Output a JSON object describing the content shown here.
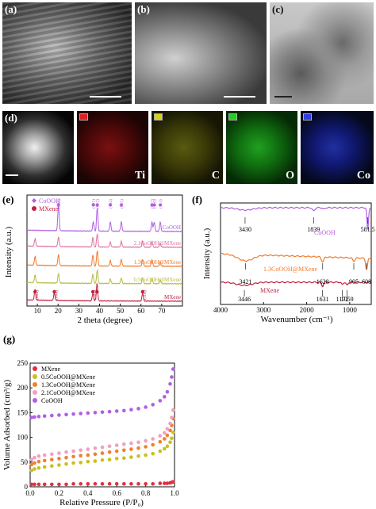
{
  "panels": {
    "a": {
      "label": "(a)"
    },
    "b": {
      "label": "(b)"
    },
    "c": {
      "label": "(c)"
    },
    "d": {
      "label": "(d)"
    },
    "e": {
      "label": "(e)"
    },
    "f": {
      "label": "(f)"
    },
    "g": {
      "label": "(g)"
    }
  },
  "eds_maps": [
    {
      "element": "Ti",
      "color": "#e02020"
    },
    {
      "element": "C",
      "color": "#d8d020"
    },
    {
      "element": "O",
      "color": "#20d020"
    },
    {
      "element": "Co",
      "color": "#3040e0"
    }
  ],
  "chart_data": [
    {
      "panel": "e",
      "type": "line",
      "xlabel": "2 theta (degree)",
      "ylabel": "Intensity (a.u.)",
      "xlim": [
        5,
        80
      ],
      "xticks": [
        10,
        20,
        30,
        40,
        50,
        60,
        70
      ],
      "legend": [
        {
          "name": "CoOOH",
          "marker": "diamond",
          "color": "#b060e0"
        },
        {
          "name": "MXene",
          "marker": "circle",
          "color": "#c02040"
        }
      ],
      "series": [
        {
          "name": "CoOOH",
          "color": "#b060e0"
        },
        {
          "name": "2.1CoOOH@MXene",
          "color": "#e070a0"
        },
        {
          "name": "1.3CoOOH@MXene",
          "color": "#f07a2a"
        },
        {
          "name": "0.5CoOOH@MXene",
          "color": "#b8b840"
        },
        {
          "name": "MXene",
          "color": "#c02040"
        }
      ],
      "cooh_peaks": [
        {
          "x": 20.2,
          "label": "(003)"
        },
        {
          "x": 37.0,
          "label": "(101)"
        },
        {
          "x": 38.9,
          "label": "(012)"
        },
        {
          "x": 45.2,
          "label": "(104)"
        },
        {
          "x": 50.5,
          "label": "(015)"
        },
        {
          "x": 65.3,
          "label": "(017)"
        },
        {
          "x": 66.4,
          "label": "(110)"
        },
        {
          "x": 69.3,
          "label": "(113)"
        }
      ],
      "mxene_peaks": [
        {
          "x": 8.9,
          "label": "(002)"
        },
        {
          "x": 18.2,
          "label": "(004)"
        },
        {
          "x": 36.8,
          "label": "(101)"
        },
        {
          "x": 38.8,
          "label": ""
        },
        {
          "x": 60.8,
          "label": "(110)"
        }
      ]
    },
    {
      "panel": "f",
      "type": "line",
      "xlabel": "Wavenumber (cm⁻¹)",
      "ylabel": "Intensity (a.u.)",
      "xlim": [
        4000,
        500
      ],
      "xticks": [
        4000,
        3000,
        2000,
        1000
      ],
      "series": [
        {
          "name": "CoOOH",
          "color": "#b060e0"
        },
        {
          "name": "1.3CoOOH@MXene",
          "color": "#f07a2a"
        },
        {
          "name": "MXene",
          "color": "#c02040"
        }
      ],
      "annotations": [
        {
          "text": "3430",
          "x": 3430,
          "series": "CoOOH"
        },
        {
          "text": "1839",
          "x": 1839,
          "series": "CoOOH"
        },
        {
          "text": "581.5",
          "x": 581.5,
          "series": "CoOOH"
        },
        {
          "text": "3421",
          "x": 3421,
          "series": "1.3CoOOH@MXene"
        },
        {
          "text": "1628",
          "x": 1628,
          "series": "1.3CoOOH@MXene"
        },
        {
          "text": "905",
          "x": 905,
          "series": "1.3CoOOH@MXene"
        },
        {
          "text": "608",
          "x": 608,
          "series": "1.3CoOOH@MXene"
        },
        {
          "text": "3446",
          "x": 3446,
          "series": "MXene"
        },
        {
          "text": "1631",
          "x": 1631,
          "series": "MXene"
        },
        {
          "text": "1172",
          "x": 1172,
          "series": "MXene"
        },
        {
          "text": "1059",
          "x": 1059,
          "series": "MXene"
        }
      ]
    },
    {
      "panel": "g",
      "type": "scatter",
      "xlabel": "Relative Pressure (P/P₀)",
      "ylabel": "Volume Adsorbed (cm³/g)",
      "xlim": [
        0.0,
        1.0
      ],
      "ylim": [
        0,
        250
      ],
      "xticks": [
        0.0,
        0.2,
        0.4,
        0.6,
        0.8,
        1.0
      ],
      "yticks": [
        0,
        50,
        100,
        150,
        200,
        250
      ],
      "legend_position": "top-left",
      "series": [
        {
          "name": "MXene",
          "color": "#e03040",
          "x": [
            0.01,
            0.03,
            0.06,
            0.1,
            0.15,
            0.2,
            0.25,
            0.3,
            0.35,
            0.4,
            0.45,
            0.5,
            0.55,
            0.6,
            0.65,
            0.7,
            0.75,
            0.8,
            0.85,
            0.9,
            0.93,
            0.95,
            0.97,
            0.98,
            0.99
          ],
          "y": [
            5,
            5,
            5,
            5,
            5,
            5,
            5,
            6,
            6,
            6,
            6,
            6,
            6,
            6,
            6,
            6,
            6,
            6,
            6,
            7,
            7,
            7,
            8,
            9,
            10
          ]
        },
        {
          "name": "0.5CoOOH@MXene",
          "color": "#c8c020",
          "x": [
            0.01,
            0.03,
            0.06,
            0.1,
            0.15,
            0.2,
            0.25,
            0.3,
            0.35,
            0.4,
            0.45,
            0.5,
            0.55,
            0.6,
            0.65,
            0.7,
            0.75,
            0.8,
            0.85,
            0.9,
            0.93,
            0.95,
            0.97,
            0.98,
            0.99
          ],
          "y": [
            33,
            36,
            38,
            40,
            42,
            44,
            46,
            48,
            49,
            51,
            52,
            54,
            55,
            57,
            58,
            60,
            62,
            64,
            67,
            72,
            77,
            82,
            90,
            98,
            110
          ]
        },
        {
          "name": "1.3CoOOH@MXene",
          "color": "#f08030",
          "x": [
            0.01,
            0.03,
            0.06,
            0.1,
            0.15,
            0.2,
            0.25,
            0.3,
            0.35,
            0.4,
            0.45,
            0.5,
            0.55,
            0.6,
            0.65,
            0.7,
            0.75,
            0.8,
            0.85,
            0.9,
            0.93,
            0.95,
            0.97,
            0.98,
            0.99
          ],
          "y": [
            45,
            48,
            51,
            53,
            55,
            57,
            59,
            61,
            63,
            64,
            66,
            68,
            70,
            72,
            74,
            76,
            78,
            81,
            85,
            91,
            97,
            104,
            114,
            124,
            138
          ]
        },
        {
          "name": "2.1CoOOH@MXene",
          "color": "#f0a0c0",
          "x": [
            0.01,
            0.03,
            0.06,
            0.1,
            0.15,
            0.2,
            0.25,
            0.3,
            0.35,
            0.4,
            0.45,
            0.5,
            0.55,
            0.6,
            0.65,
            0.7,
            0.75,
            0.8,
            0.85,
            0.9,
            0.93,
            0.95,
            0.97,
            0.98,
            0.99
          ],
          "y": [
            55,
            59,
            62,
            64,
            66,
            68,
            70,
            72,
            74,
            76,
            78,
            80,
            82,
            84,
            86,
            88,
            90,
            93,
            97,
            103,
            109,
            117,
            128,
            140,
            155
          ]
        },
        {
          "name": "CoOOH",
          "color": "#b060e0",
          "x": [
            0.01,
            0.03,
            0.06,
            0.1,
            0.15,
            0.2,
            0.25,
            0.3,
            0.35,
            0.4,
            0.45,
            0.5,
            0.55,
            0.6,
            0.65,
            0.7,
            0.75,
            0.8,
            0.85,
            0.9,
            0.93,
            0.95,
            0.97,
            0.98,
            0.99
          ],
          "y": [
            140,
            141,
            142,
            143,
            144,
            145,
            146,
            147,
            148,
            149,
            150,
            151,
            152,
            153,
            154,
            156,
            158,
            161,
            166,
            174,
            182,
            192,
            208,
            222,
            238
          ]
        }
      ]
    }
  ]
}
